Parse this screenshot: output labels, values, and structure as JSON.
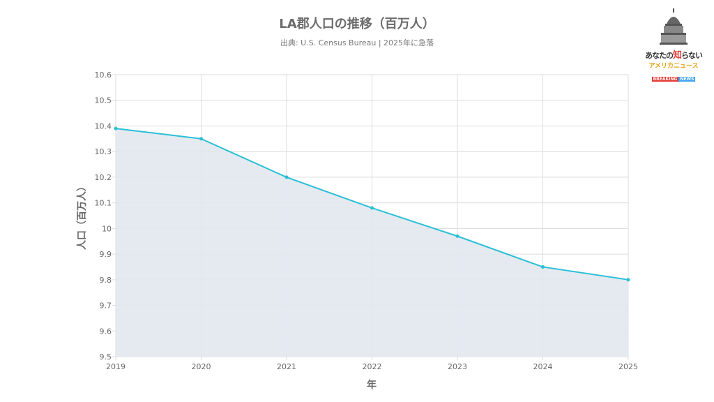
{
  "chart_data": {
    "type": "area",
    "title": "LA郡人口の推移（百万人）",
    "subtitle": "出典: U.S. Census Bureau | 2025年に急落",
    "xlabel": "年",
    "ylabel": "人口（百万人）",
    "categories": [
      "2019",
      "2020",
      "2021",
      "2022",
      "2023",
      "2024",
      "2025"
    ],
    "series": [
      {
        "name": "人口",
        "values": [
          10.39,
          10.35,
          10.2,
          10.08,
          9.97,
          9.85,
          9.8
        ]
      }
    ],
    "ylim": [
      9.5,
      10.6
    ],
    "yticks": [
      "9.5",
      "9.6",
      "9.7",
      "9.8",
      "9.9",
      "10",
      "10.1",
      "10.2",
      "10.3",
      "10.4",
      "10.5",
      "10.6"
    ],
    "grid": true,
    "colors": {
      "line": "#2bbfd6",
      "fill": "#e2e8f0",
      "grid": "#dcdcdc"
    }
  },
  "logo": {
    "line1a": "あなたの",
    "line1b": "知",
    "line1c": "らない",
    "line2": "アメリカニュース",
    "line3a": "BREAKING",
    "line3b": "NEWS"
  }
}
